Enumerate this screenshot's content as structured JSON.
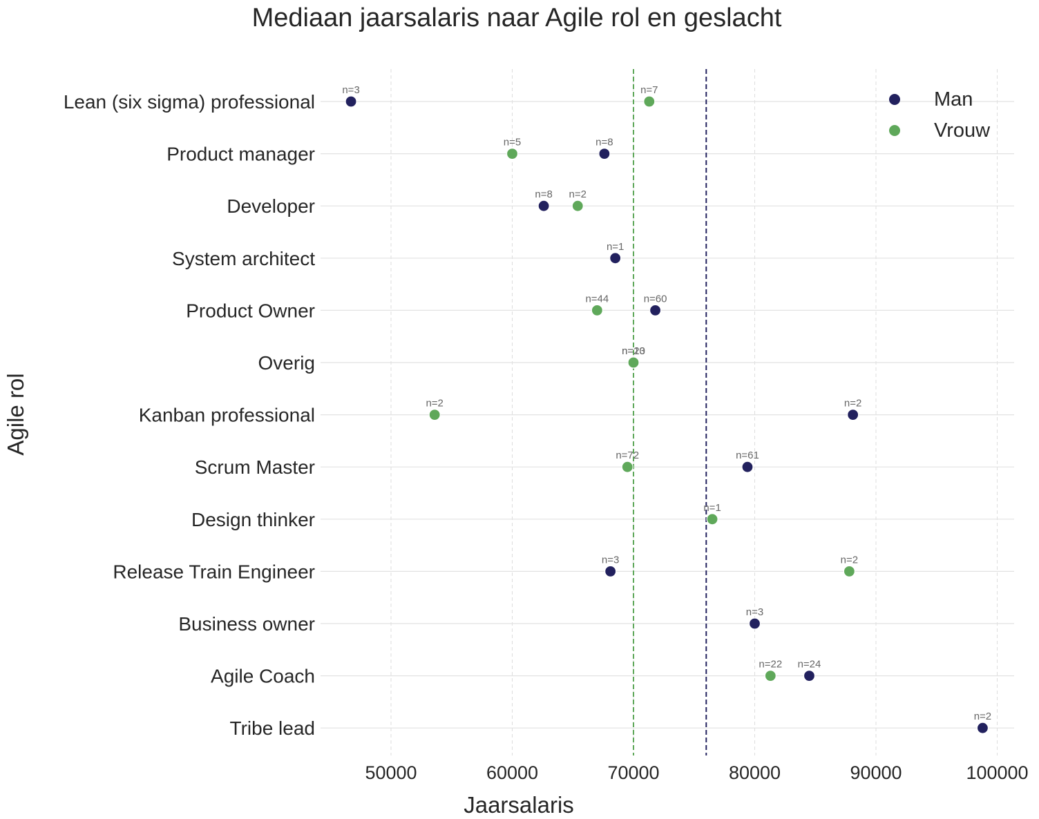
{
  "chart_data": {
    "type": "scatter",
    "title": "Mediaan jaarsalaris naar Agile rol en geslacht",
    "xlabel": "Jaarsalaris",
    "ylabel": "Agile rol",
    "xlim": [
      44200,
      101200
    ],
    "xticks": [
      50000,
      60000,
      70000,
      80000,
      90000,
      100000
    ],
    "grid": true,
    "legend_position": "top-right",
    "categories": [
      "Lean (six sigma) professional",
      "Product manager",
      "Developer",
      "System architect",
      "Product Owner",
      "Overig",
      "Kanban professional",
      "Scrum Master",
      "Design thinker",
      "Release Train Engineer",
      "Business owner",
      "Agile Coach",
      "Tribe lead"
    ],
    "series": [
      {
        "name": "Man",
        "color": "#22215e",
        "points": [
          {
            "category": "Lean (six sigma) professional",
            "value": 46700,
            "label": "n=3"
          },
          {
            "category": "Product manager",
            "value": 67600,
            "label": "n=8"
          },
          {
            "category": "Developer",
            "value": 62600,
            "label": "n=8"
          },
          {
            "category": "System architect",
            "value": 68500,
            "label": "n=1"
          },
          {
            "category": "Product Owner",
            "value": 71800,
            "label": "n=60"
          },
          {
            "category": "Overig",
            "value": 70000,
            "label": "n=20"
          },
          {
            "category": "Kanban professional",
            "value": 88100,
            "label": "n=2"
          },
          {
            "category": "Scrum Master",
            "value": 79400,
            "label": "n=61"
          },
          {
            "category": "Release Train Engineer",
            "value": 68100,
            "label": "n=3"
          },
          {
            "category": "Business owner",
            "value": 80000,
            "label": "n=3"
          },
          {
            "category": "Agile Coach",
            "value": 84500,
            "label": "n=24"
          },
          {
            "category": "Tribe lead",
            "value": 98800,
            "label": "n=2"
          }
        ]
      },
      {
        "name": "Vrouw",
        "color": "#5fa85a",
        "points": [
          {
            "category": "Lean (six sigma) professional",
            "value": 71300,
            "label": "n=7"
          },
          {
            "category": "Product manager",
            "value": 60000,
            "label": "n=5"
          },
          {
            "category": "Developer",
            "value": 65400,
            "label": "n=2"
          },
          {
            "category": "Product Owner",
            "value": 67000,
            "label": "n=44"
          },
          {
            "category": "Overig",
            "value": 70000,
            "label": "n=13"
          },
          {
            "category": "Kanban professional",
            "value": 53600,
            "label": "n=2"
          },
          {
            "category": "Scrum Master",
            "value": 69500,
            "label": "n=72"
          },
          {
            "category": "Design thinker",
            "value": 76500,
            "label": "n=1"
          },
          {
            "category": "Release Train Engineer",
            "value": 87800,
            "label": "n=2"
          },
          {
            "category": "Agile Coach",
            "value": 81300,
            "label": "n=22"
          }
        ]
      }
    ],
    "reference_lines": [
      {
        "series": "Vrouw",
        "value": 70000,
        "color": "#5fa85a",
        "style": "dashed"
      },
      {
        "series": "Man",
        "value": 76000,
        "color": "#22215e",
        "style": "dashed"
      }
    ]
  }
}
